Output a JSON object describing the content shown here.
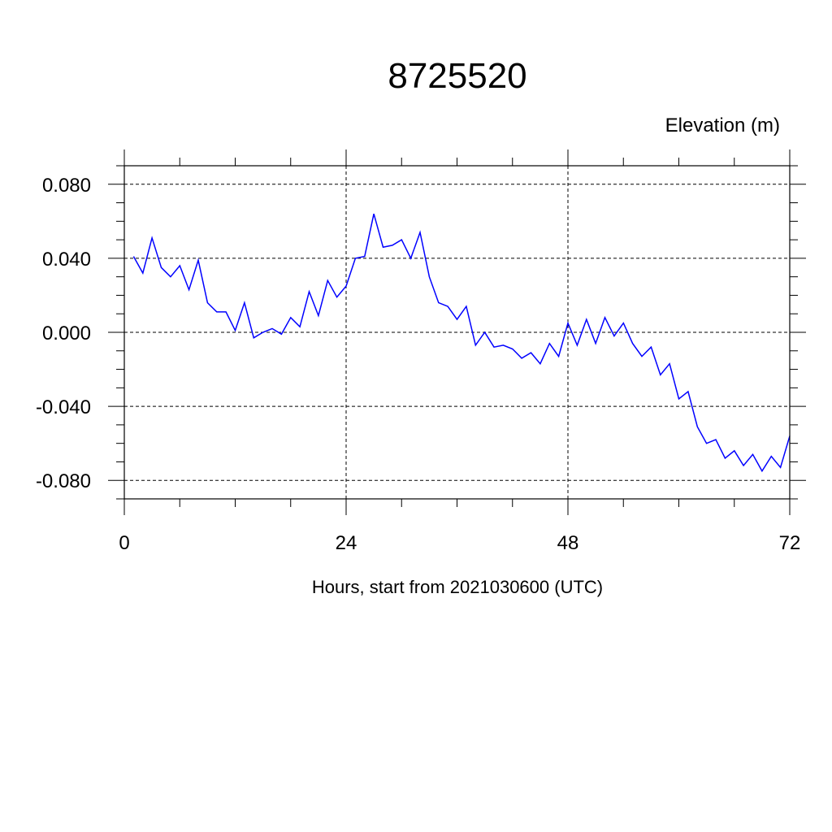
{
  "chart_data": {
    "type": "line",
    "title": "8725520",
    "units_label": "Elevation (m)",
    "xlabel": "Hours, start from 2021030600 (UTC)",
    "ylabel": "",
    "xlim": [
      0,
      72
    ],
    "ylim": [
      -0.09,
      0.09
    ],
    "x_ticks": [
      0,
      24,
      48,
      72
    ],
    "x_tick_labels": [
      "0",
      "24",
      "48",
      "72"
    ],
    "x_minor_step": 6,
    "y_ticks": [
      -0.08,
      -0.04,
      0.0,
      0.04,
      0.08
    ],
    "y_tick_labels": [
      "-0.080",
      "-0.040",
      "0.000",
      "0.040",
      "0.080"
    ],
    "y_minor_step": 0.01,
    "grid": true,
    "series": [
      {
        "color": "#0000ff",
        "x": [
          1,
          2,
          3,
          4,
          5,
          6,
          7,
          8,
          9,
          10,
          11,
          12,
          13,
          14,
          15,
          16,
          17,
          18,
          19,
          20,
          21,
          22,
          23,
          24,
          25,
          26,
          27,
          28,
          29,
          30,
          31,
          32,
          33,
          34,
          35,
          36,
          37,
          38,
          39,
          40,
          41,
          42,
          43,
          44,
          45,
          46,
          47,
          48,
          49,
          50,
          51,
          52,
          53,
          54,
          55,
          56,
          57,
          58,
          59,
          60,
          61,
          62,
          63,
          64,
          65,
          66,
          67,
          68,
          69,
          70,
          71,
          72
        ],
        "y": [
          0.041,
          0.032,
          0.051,
          0.035,
          0.03,
          0.036,
          0.023,
          0.039,
          0.016,
          0.011,
          0.011,
          0.001,
          0.016,
          -0.003,
          0.0,
          0.002,
          -0.001,
          0.008,
          0.003,
          0.022,
          0.009,
          0.028,
          0.019,
          0.025,
          0.04,
          0.041,
          0.064,
          0.046,
          0.047,
          0.05,
          0.04,
          0.054,
          0.03,
          0.016,
          0.014,
          0.007,
          0.014,
          -0.007,
          0.0,
          -0.008,
          -0.007,
          -0.009,
          -0.014,
          -0.011,
          -0.017,
          -0.006,
          -0.013,
          0.005,
          -0.007,
          0.007,
          -0.006,
          0.008,
          -0.002,
          0.005,
          -0.006,
          -0.013,
          -0.008,
          -0.023,
          -0.017,
          -0.036,
          -0.032,
          -0.051,
          -0.06,
          -0.058,
          -0.068,
          -0.064,
          -0.072,
          -0.066,
          -0.075,
          -0.067,
          -0.073,
          -0.056
        ]
      }
    ]
  }
}
